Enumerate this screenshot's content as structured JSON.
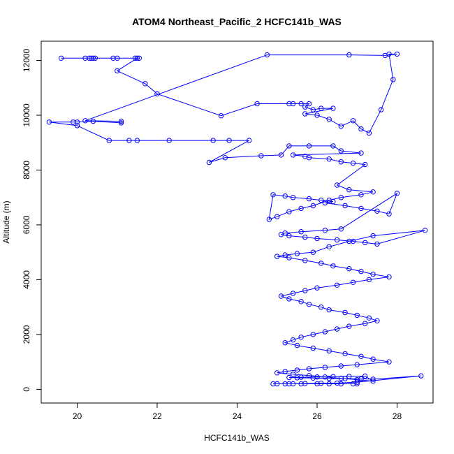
{
  "chart_data": {
    "type": "scatter",
    "title": "ATOM4 Northeast_Pacific_2 HCFC141b_WAS",
    "xlabel": "HCFC141b_WAS",
    "ylabel": "Altitude (m)",
    "xlim": [
      19.1,
      28.9
    ],
    "ylim": [
      -500,
      12700
    ],
    "xticks": [
      20,
      22,
      24,
      26,
      28
    ],
    "yticks": [
      0,
      2000,
      4000,
      6000,
      8000,
      10000,
      12000
    ],
    "grid": false,
    "legend": "none",
    "color": "#0000ff",
    "series": [
      {
        "x": [
          19.6,
          20.2,
          20.3,
          20.4,
          20.35,
          20.45,
          20.9,
          21.0,
          21.45,
          21.55,
          21.5,
          21.0,
          21.7,
          22.0,
          23.6,
          24.5,
          25.3,
          25.4,
          25.6,
          25.8,
          25.7,
          25.9,
          26.1,
          26.4,
          25.7,
          26.0,
          26.3,
          26.6,
          26.9,
          27.1,
          27.3,
          27.6,
          27.9,
          27.8,
          28.0,
          27.7,
          26.8,
          24.75,
          20.2,
          21.1,
          21.1,
          20.4,
          20.0,
          19.9,
          19.3,
          20.0,
          20.8,
          21.3,
          21.5,
          22.3,
          23.4,
          23.8,
          24.3,
          23.3,
          23.7,
          24.6,
          25.1,
          25.3,
          25.8,
          26.4,
          26.6,
          27.1,
          25.4,
          25.7,
          25.8,
          26.3,
          26.6,
          26.9,
          27.2,
          26.5,
          26.8,
          27.4,
          27.1,
          26.6,
          26.3,
          25.9,
          25.6,
          25.3,
          25.0,
          24.8,
          24.9,
          25.2,
          25.4,
          25.8,
          26.1,
          26.4,
          26.2,
          26.7,
          27.1,
          27.5,
          27.8,
          28.0,
          26.6,
          26.2,
          25.6,
          25.2,
          25.1,
          25.3,
          25.7,
          26.0,
          26.5,
          26.9,
          27.2,
          27.5,
          28.7,
          27.4,
          26.8,
          26.3,
          25.9,
          25.5,
          25.2,
          25.0,
          25.3,
          25.7,
          26.1,
          26.4,
          26.8,
          27.1,
          27.4,
          27.8,
          27.3,
          26.9,
          26.5,
          26.0,
          25.7,
          25.4,
          25.1,
          25.3,
          25.6,
          25.8,
          26.1,
          26.3,
          26.7,
          27.0,
          27.3,
          27.5,
          27.2,
          26.8,
          26.5,
          26.2,
          25.9,
          25.6,
          25.4,
          25.2,
          25.5,
          25.9,
          26.3,
          26.7,
          27.1,
          27.4,
          27.8,
          27.0,
          26.6,
          26.2,
          25.8,
          25.5,
          25.2,
          25.0,
          25.4,
          25.8,
          26.2,
          26.6,
          27.0,
          27.4,
          27.2,
          26.8,
          26.4,
          26.0,
          25.6,
          25.3,
          25.5,
          25.9,
          26.3,
          26.7,
          27.1,
          27.4,
          28.6,
          27.0,
          26.5,
          26.1,
          25.7,
          25.4,
          25.2,
          25.0,
          24.9,
          25.3,
          25.6,
          26.0,
          26.3,
          26.6,
          26.9,
          27.0
        ],
        "y": [
          12080,
          12080,
          12080,
          12080,
          12080,
          12080,
          12080,
          12080,
          12080,
          12080,
          12080,
          11620,
          11150,
          10780,
          9980,
          10420,
          10420,
          10420,
          10420,
          10420,
          10300,
          10200,
          10250,
          10250,
          10050,
          10000,
          9850,
          9600,
          9800,
          9500,
          9350,
          10200,
          11300,
          12230,
          12230,
          12180,
          12200,
          12200,
          9800,
          9780,
          9720,
          9780,
          9750,
          9750,
          9750,
          9620,
          9080,
          9080,
          9080,
          9080,
          9080,
          9080,
          9080,
          8280,
          8450,
          8520,
          8550,
          8880,
          8880,
          8880,
          8700,
          8620,
          8550,
          8500,
          8450,
          8400,
          8300,
          8250,
          8200,
          7450,
          7280,
          7200,
          7100,
          7000,
          6900,
          6700,
          6600,
          6480,
          6300,
          6200,
          7100,
          7050,
          7000,
          6950,
          6900,
          6850,
          6800,
          6700,
          6600,
          6500,
          6400,
          7150,
          5850,
          5800,
          5750,
          5700,
          5650,
          5600,
          5550,
          5500,
          5450,
          5400,
          5350,
          5300,
          5800,
          5600,
          5400,
          5200,
          5000,
          4950,
          4900,
          4850,
          4800,
          4700,
          4600,
          4500,
          4400,
          4300,
          4200,
          4100,
          4000,
          3900,
          3800,
          3700,
          3600,
          3500,
          3400,
          3300,
          3200,
          3100,
          3000,
          2900,
          2800,
          2700,
          2600,
          2500,
          2400,
          2300,
          2200,
          2100,
          2000,
          1900,
          1800,
          1700,
          1600,
          1500,
          1400,
          1300,
          1200,
          1100,
          1000,
          900,
          850,
          800,
          750,
          700,
          650,
          600,
          550,
          500,
          450,
          400,
          350,
          300,
          480,
          470,
          460,
          450,
          440,
          430,
          420,
          410,
          400,
          390,
          380,
          370,
          490,
          260,
          230,
          220,
          210,
          200,
          200,
          200,
          200,
          200,
          200,
          200,
          200,
          200,
          200,
          200
        ]
      }
    ]
  }
}
